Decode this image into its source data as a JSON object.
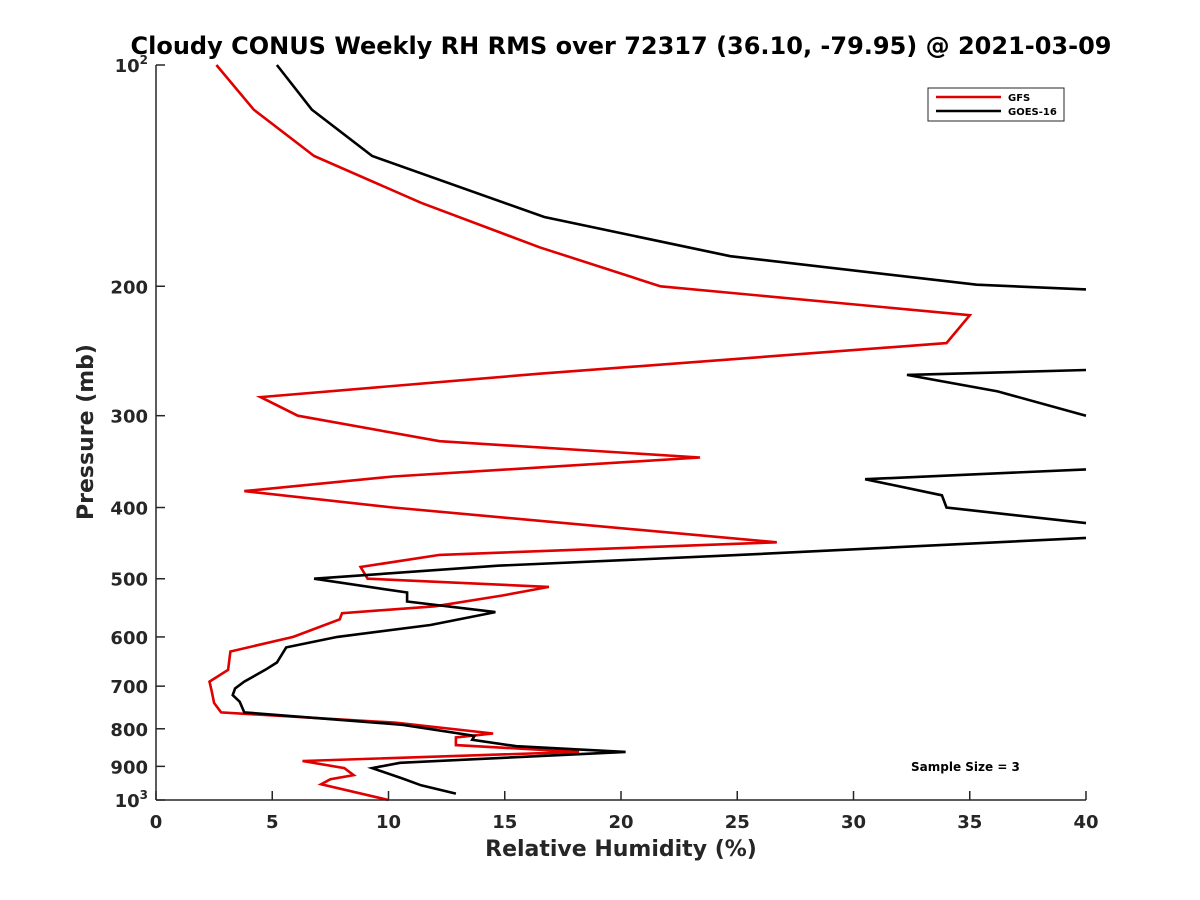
{
  "chart_data": {
    "type": "line",
    "title": "Cloudy CONUS Weekly RH RMS over 72317 (36.10, -79.95) @ 2021-03-09",
    "xlabel": "Relative Humidity (%)",
    "ylabel": "Pressure (mb)",
    "xlim": [
      0,
      40
    ],
    "ylim": [
      100,
      1000
    ],
    "y_scale": "log",
    "y_reversed": true,
    "xticks": [
      0,
      5,
      10,
      15,
      20,
      25,
      30,
      35,
      40
    ],
    "yticks": [
      {
        "value": 100,
        "label": "10",
        "sup": "2"
      },
      {
        "value": 200,
        "label": "200",
        "sup": ""
      },
      {
        "value": 300,
        "label": "300",
        "sup": ""
      },
      {
        "value": 400,
        "label": "400",
        "sup": ""
      },
      {
        "value": 500,
        "label": "500",
        "sup": ""
      },
      {
        "value": 600,
        "label": "600",
        "sup": ""
      },
      {
        "value": 700,
        "label": "700",
        "sup": ""
      },
      {
        "value": 800,
        "label": "800",
        "sup": ""
      },
      {
        "value": 900,
        "label": "900",
        "sup": ""
      },
      {
        "value": 1000,
        "label": "10",
        "sup": "3"
      }
    ],
    "grid": false,
    "legend_position": "top-right",
    "annotation": "Sample Size = 3",
    "series": [
      {
        "name": "GFS",
        "color": "#e00000",
        "points": [
          [
            2.6,
            100
          ],
          [
            4.2,
            115
          ],
          [
            6.8,
            133
          ],
          [
            11.4,
            154
          ],
          [
            16.5,
            177
          ],
          [
            21.7,
            200
          ],
          [
            35.0,
            219
          ],
          [
            34.0,
            239
          ],
          [
            16.5,
            263
          ],
          [
            4.5,
            283
          ],
          [
            6.1,
            300
          ],
          [
            12.2,
            325
          ],
          [
            23.4,
            342
          ],
          [
            10.2,
            363
          ],
          [
            3.8,
            380
          ],
          [
            10.2,
            400
          ],
          [
            26.7,
            446
          ],
          [
            12.2,
            464
          ],
          [
            8.8,
            482
          ],
          [
            9.1,
            500
          ],
          [
            16.9,
            513
          ],
          [
            14.9,
            527
          ],
          [
            12.0,
            545
          ],
          [
            8.0,
            557
          ],
          [
            7.9,
            568
          ],
          [
            5.9,
            600
          ],
          [
            3.2,
            628
          ],
          [
            3.1,
            665
          ],
          [
            2.3,
            690
          ],
          [
            2.4,
            712
          ],
          [
            2.5,
            738
          ],
          [
            2.8,
            760
          ],
          [
            10.3,
            785
          ],
          [
            14.5,
            812
          ],
          [
            12.9,
            822
          ],
          [
            12.9,
            842
          ],
          [
            18.2,
            860
          ],
          [
            6.3,
            885
          ],
          [
            8.1,
            905
          ],
          [
            8.5,
            925
          ],
          [
            7.5,
            937
          ],
          [
            7.1,
            952
          ],
          [
            10.0,
            1000
          ]
        ]
      },
      {
        "name": "GOES-16",
        "color": "#000000",
        "points": [
          [
            5.2,
            100
          ],
          [
            6.7,
            115
          ],
          [
            9.3,
            133
          ],
          [
            16.7,
            161
          ],
          [
            24.7,
            182
          ],
          [
            35.3,
            199
          ],
          [
            40.0,
            202
          ],
          [
            null,
            null
          ],
          [
            40.0,
            260
          ],
          [
            32.3,
            264
          ],
          [
            36.2,
            278
          ],
          [
            40.0,
            300
          ],
          [
            null,
            null
          ],
          [
            40.0,
            355
          ],
          [
            30.5,
            366
          ],
          [
            33.8,
            385
          ],
          [
            34.0,
            400
          ],
          [
            40.0,
            420
          ],
          [
            null,
            null
          ],
          [
            40.0,
            440
          ],
          [
            24.5,
            465
          ],
          [
            14.7,
            480
          ],
          [
            6.8,
            500
          ],
          [
            10.8,
            522
          ],
          [
            10.8,
            537
          ],
          [
            14.6,
            555
          ],
          [
            11.8,
            578
          ],
          [
            7.8,
            600
          ],
          [
            5.6,
            620
          ],
          [
            5.2,
            650
          ],
          [
            4.7,
            665
          ],
          [
            3.8,
            690
          ],
          [
            3.4,
            705
          ],
          [
            3.3,
            720
          ],
          [
            3.6,
            735
          ],
          [
            3.8,
            760
          ],
          [
            10.6,
            790
          ],
          [
            13.7,
            818
          ],
          [
            13.6,
            828
          ],
          [
            15.5,
            845
          ],
          [
            20.2,
            860
          ],
          [
            10.5,
            890
          ],
          [
            9.3,
            905
          ],
          [
            10.6,
            935
          ],
          [
            11.4,
            955
          ],
          [
            12.9,
            980
          ]
        ]
      }
    ]
  }
}
